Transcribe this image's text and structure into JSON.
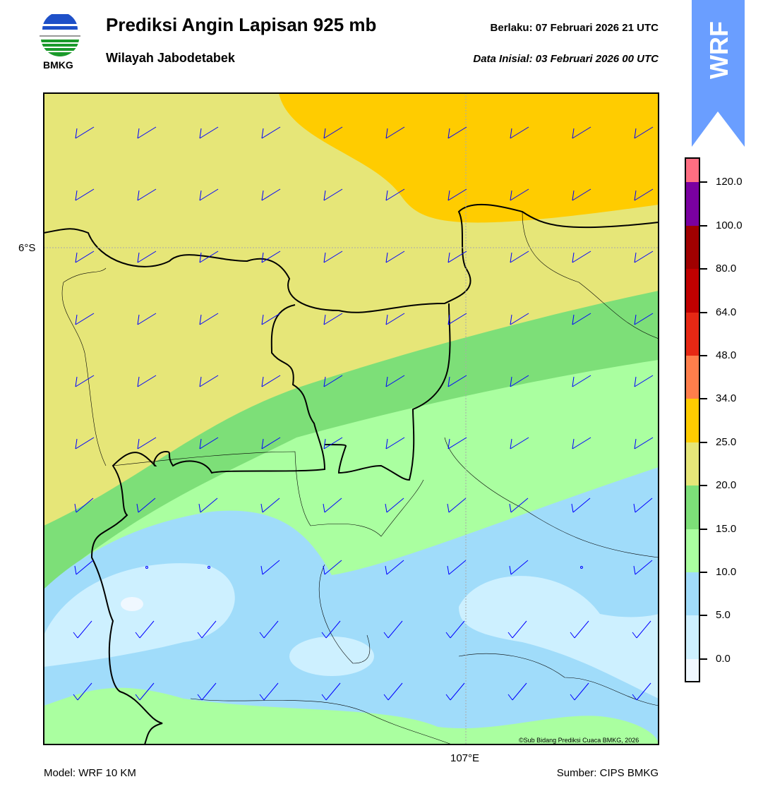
{
  "header": {
    "logo_text": "BMKG",
    "title": "Prediksi Angin Lapisan 925 mb",
    "subtitle": "Wilayah Jabodetabek",
    "valid_label": "Berlaku:  07 Februari 2026 21 UTC",
    "init_label": "Data Inisial:  03 Februari 2026 00 UTC",
    "badge": "WRF"
  },
  "map": {
    "lat_label": "6°S",
    "lon_label": "107°E",
    "copyright": "©Sub Bidang Prediksi Cuaca BMKG, 2026",
    "colors": {
      "yellow": "#e6e678",
      "orange": "#ffcc00",
      "dark_green": "#7ddf78",
      "light_green": "#aaffa0",
      "blue": "#a0dcfa",
      "light_blue": "#cdf0ff",
      "white": "#f0f8ff",
      "barb": "#0000ff"
    }
  },
  "colorbar": {
    "labels": [
      "120.0",
      "100.0",
      "80.0",
      "64.0",
      "48.0",
      "34.0",
      "25.0",
      "20.0",
      "15.0",
      "10.0",
      "5.0",
      "0.0"
    ],
    "colors": [
      "#ff6e82",
      "#7a00a0",
      "#a00000",
      "#c00000",
      "#e62814",
      "#ff7e4b",
      "#ffcc00",
      "#e6e678",
      "#7ddf78",
      "#aaffa0",
      "#a0dcfa",
      "#cdf0ff",
      "#f0f8ff"
    ]
  },
  "footer": {
    "model": "Model: WRF 10 KM",
    "source": "Sumber: CIPS BMKG"
  }
}
